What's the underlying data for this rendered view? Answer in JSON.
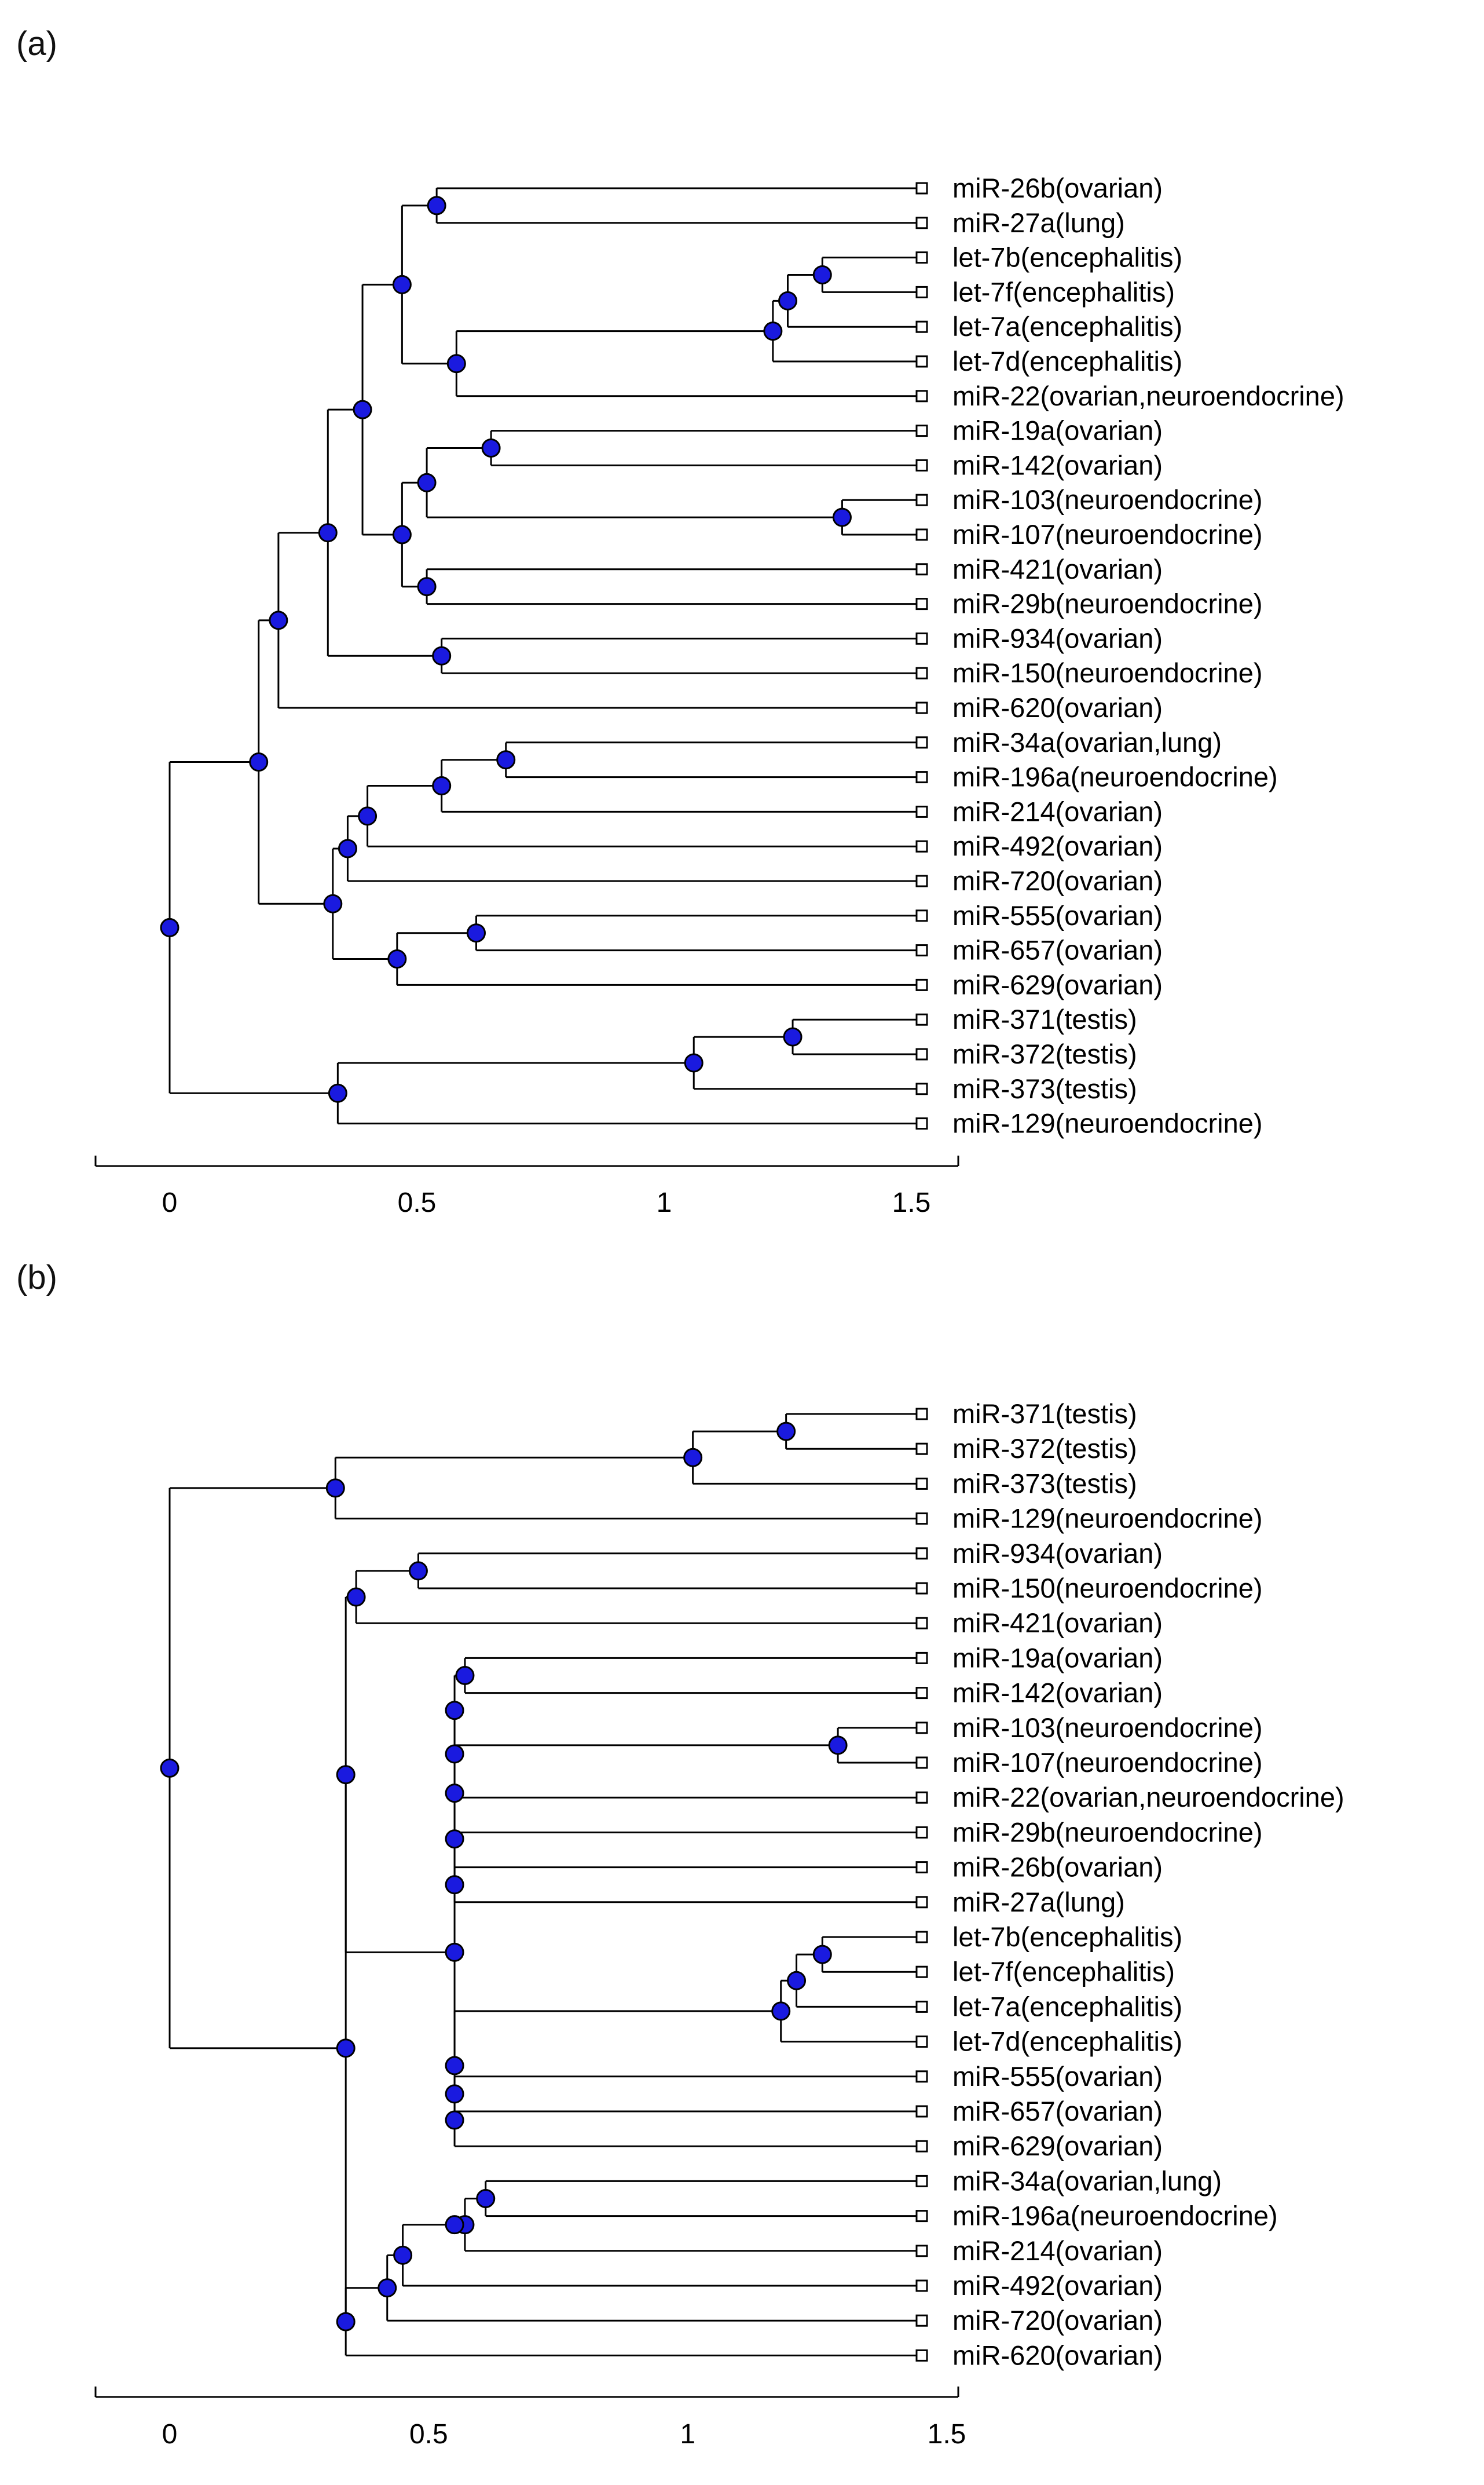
{
  "figure": {
    "panels": [
      {
        "id": "a",
        "panel_label": "(a)",
        "axis": {
          "ticks": [
            "0",
            "0.5",
            "1",
            "1.5"
          ],
          "tick_values": [
            0,
            0.5,
            1,
            1.5
          ],
          "xlim": [
            -0.15,
            1.58
          ]
        },
        "leaves": [
          "miR-26b(ovarian)",
          "miR-27a(lung)",
          "let-7b(encephalitis)",
          "let-7f(encephalitis)",
          "let-7a(encephalitis)",
          "let-7d(encephalitis)",
          "miR-22(ovarian,neuroendocrine)",
          "miR-19a(ovarian)",
          "miR-142(ovarian)",
          "miR-103(neuroendocrine)",
          "miR-107(neuroendocrine)",
          "miR-421(ovarian)",
          "miR-29b(neuroendocrine)",
          "miR-934(ovarian)",
          "miR-150(neuroendocrine)",
          "miR-620(ovarian)",
          "miR-34a(ovarian,lung)",
          "miR-196a(neuroendocrine)",
          "miR-214(ovarian)",
          "miR-492(ovarian)",
          "miR-720(ovarian)",
          "miR-555(ovarian)",
          "miR-657(ovarian)",
          "miR-629(ovarian)",
          "miR-371(testis)",
          "miR-372(testis)",
          "miR-373(testis)",
          "miR-129(neuroendocrine)"
        ],
        "tree": [
          0,
          [
            [
              0.18,
              [
                [
                  0.22,
                  [
                    [
                      0.32,
                      [
                        [
                          0.39,
                          [
                            [
                              0.47,
                              [
                                [
                                  0.54,
                                  [
                                    0,
                                    1
                                  ]
                                ],
                                [
                                  0.58,
                                  [
                                    [
                                      1.22,
                                      [
                                        [
                                          1.25,
                                          [
                                            [
                                              1.32,
                                              [
                                                2,
                                                3
                                              ]
                                            ],
                                            4
                                          ]
                                        ],
                                        5
                                      ]
                                    ],
                                    6
                                  ]
                                ]
                              ]
                            ],
                            [
                              0.47,
                              [
                                [
                                  0.52,
                                  [
                                    [
                                      0.65,
                                      [
                                        7,
                                        8
                                      ]
                                    ],
                                    [
                                      1.36,
                                      [
                                        9,
                                        10
                                      ]
                                    ]
                                  ]
                                ],
                                [
                                  0.52,
                                  [
                                    11,
                                    12
                                  ]
                                ]
                              ]
                            ]
                          ]
                        ],
                        [
                          0.55,
                          [
                            13,
                            14
                          ]
                        ]
                      ]
                    ],
                    15
                  ]
                ],
                [
                  0.33,
                  [
                    [
                      0.36,
                      [
                        [
                          0.4,
                          [
                            [
                              0.55,
                              [
                                [
                                  0.68,
                                  [
                                    16,
                                    17
                                  ]
                                ],
                                18
                              ]
                            ],
                            19
                          ]
                        ],
                        20
                      ]
                    ],
                    [
                      0.46,
                      [
                        [
                          0.62,
                          [
                            21,
                            22
                          ]
                        ],
                        23
                      ]
                    ]
                  ]
                ]
              ]
            ],
            [
              0.34,
              [
                [
                  1.06,
                  [
                    [
                      1.26,
                      [
                        24,
                        25
                      ]
                    ],
                    26
                  ]
                ],
                27
              ]
            ]
          ]
        ]
      },
      {
        "id": "b",
        "panel_label": "(b)",
        "axis": {
          "ticks": [
            "0",
            "0.5",
            "1",
            "1.5"
          ],
          "tick_values": [
            0,
            0.5,
            1,
            1.5
          ],
          "xlim": [
            -0.14,
            1.52
          ]
        },
        "leaves": [
          "miR-371(testis)",
          "miR-372(testis)",
          "miR-373(testis)",
          "miR-129(neuroendocrine)",
          "miR-934(ovarian)",
          "miR-150(neuroendocrine)",
          "miR-421(ovarian)",
          "miR-19a(ovarian)",
          "miR-142(ovarian)",
          "miR-103(neuroendocrine)",
          "miR-107(neuroendocrine)",
          "miR-22(ovarian,neuroendocrine)",
          "miR-29b(neuroendocrine)",
          "miR-26b(ovarian)",
          "miR-27a(lung)",
          "let-7b(encephalitis)",
          "let-7f(encephalitis)",
          "let-7a(encephalitis)",
          "let-7d(encephalitis)",
          "miR-555(ovarian)",
          "miR-657(ovarian)",
          "miR-629(ovarian)",
          "miR-34a(ovarian,lung)",
          "miR-196a(neuroendocrine)",
          "miR-214(ovarian)",
          "miR-492(ovarian)",
          "miR-720(ovarian)",
          "miR-620(ovarian)"
        ],
        "tree": [
          0,
          [
            [
              0.32,
              [
                [
                  1.01,
                  [
                    [
                      1.19,
                      [
                        0,
                        1
                      ]
                    ],
                    2
                  ]
                ],
                3
              ]
            ],
            [
              0.34,
              [
                [
                  0.34,
                  [
                    [
                      0.36,
                      [
                        [
                          0.48,
                          [
                            4,
                            5
                          ]
                        ],
                        6
                      ]
                    ],
                    [
                      0.55,
                      [
                        [
                          0.55,
                          [
                            [
                              0.55,
                              [
                                [
                                  0.55,
                                  [
                                    [
                                      0.55,
                                      [
                                        [
                                          0.57,
                                          [
                                            7,
                                            8
                                          ]
                                        ],
                                        [
                                          1.29,
                                          [
                                            9,
                                            10
                                          ]
                                        ]
                                      ]
                                    ],
                                    11
                                  ]
                                ],
                                12
                              ]
                            ],
                            [
                              0.55,
                              [
                                13,
                                14
                              ]
                            ]
                          ]
                        ],
                        [
                          0.55,
                          [
                            [
                              1.18,
                              [
                                [
                                  1.21,
                                  [
                                    [
                                      1.26,
                                      [
                                        15,
                                        16
                                      ]
                                    ],
                                    17
                                  ]
                                ],
                                18
                              ]
                            ],
                            [
                              0.55,
                              [
                                [
                                  0.55,
                                  [
                                    19,
                                    20
                                  ]
                                ],
                                21
                              ]
                            ]
                          ]
                        ]
                      ]
                    ]
                  ]
                ],
                [
                  0.34,
                  [
                    [
                      0.42,
                      [
                        [
                          0.45,
                          [
                            [
                              0.55,
                              [
                                [
                                  0.57,
                                  [
                                    [
                                      0.61,
                                      [
                                        22,
                                        23
                                      ]
                                    ],
                                    24
                                  ]
                                ]
                              ]
                            ],
                            25
                          ]
                        ],
                        26
                      ]
                    ],
                    27
                  ]
                ]
              ]
            ]
          ]
        ]
      }
    ]
  }
}
